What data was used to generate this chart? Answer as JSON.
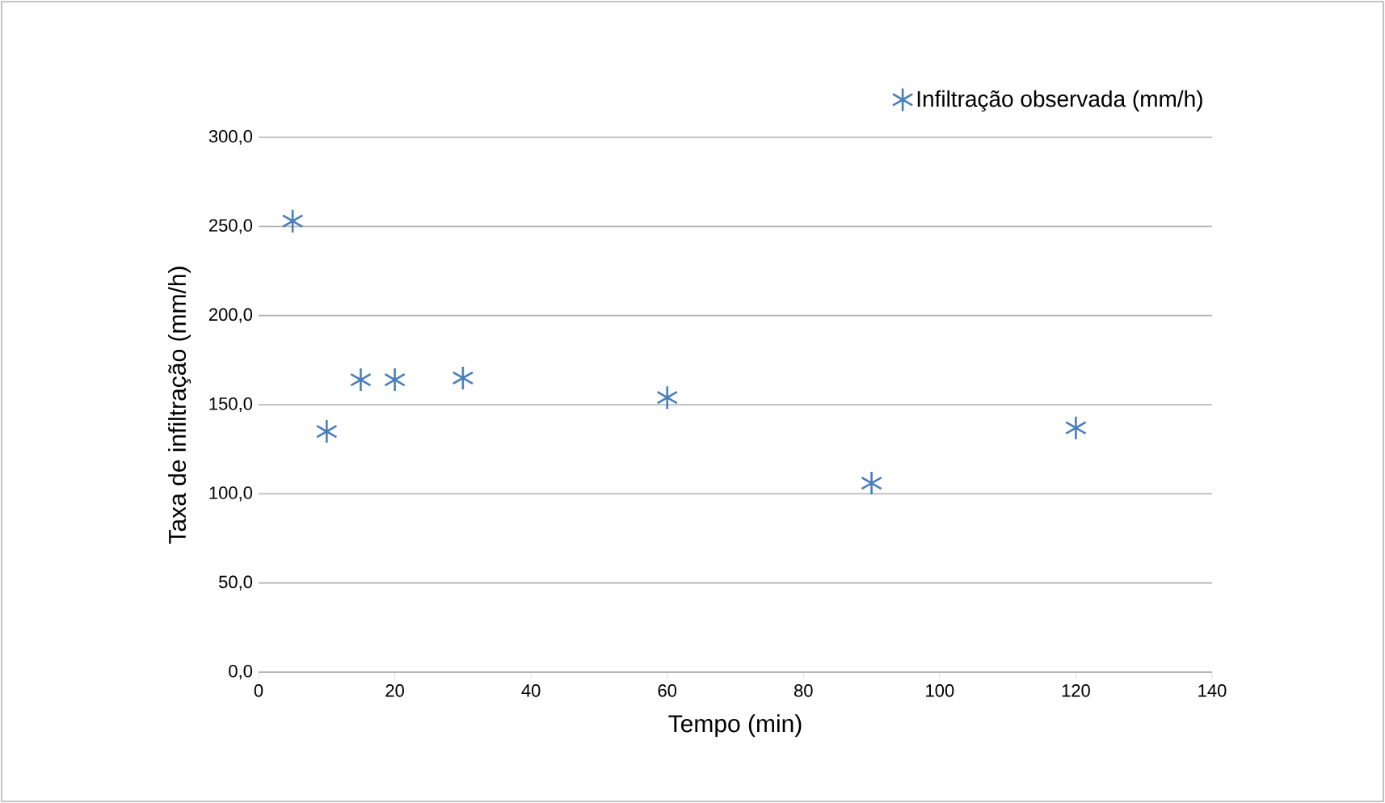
{
  "chart_data": {
    "type": "scatter",
    "xlabel": "Tempo (min)",
    "ylabel": "Taxa de infiltração (mm/h)",
    "x": [
      5,
      10,
      15,
      20,
      30,
      60,
      90,
      120
    ],
    "series": [
      {
        "name": "Infiltração observada (mm/h)",
        "color": "#4a7ebb",
        "values": [
          253,
          135,
          164,
          164,
          165,
          154,
          106,
          137
        ]
      }
    ],
    "xlim": [
      0,
      140
    ],
    "xticks": [
      0,
      20,
      40,
      60,
      80,
      100,
      120,
      140
    ],
    "ylim": [
      0,
      300
    ],
    "yticks": [
      {
        "value": 0,
        "label": "0,0"
      },
      {
        "value": 50,
        "label": "50,0"
      },
      {
        "value": 100,
        "label": "100,0"
      },
      {
        "value": 150,
        "label": "150,0"
      },
      {
        "value": 200,
        "label": "200,0"
      },
      {
        "value": 250,
        "label": "250,0"
      },
      {
        "value": 300,
        "label": "300,0"
      }
    ],
    "grid": "y",
    "legend": "top right",
    "marker": "cross"
  }
}
